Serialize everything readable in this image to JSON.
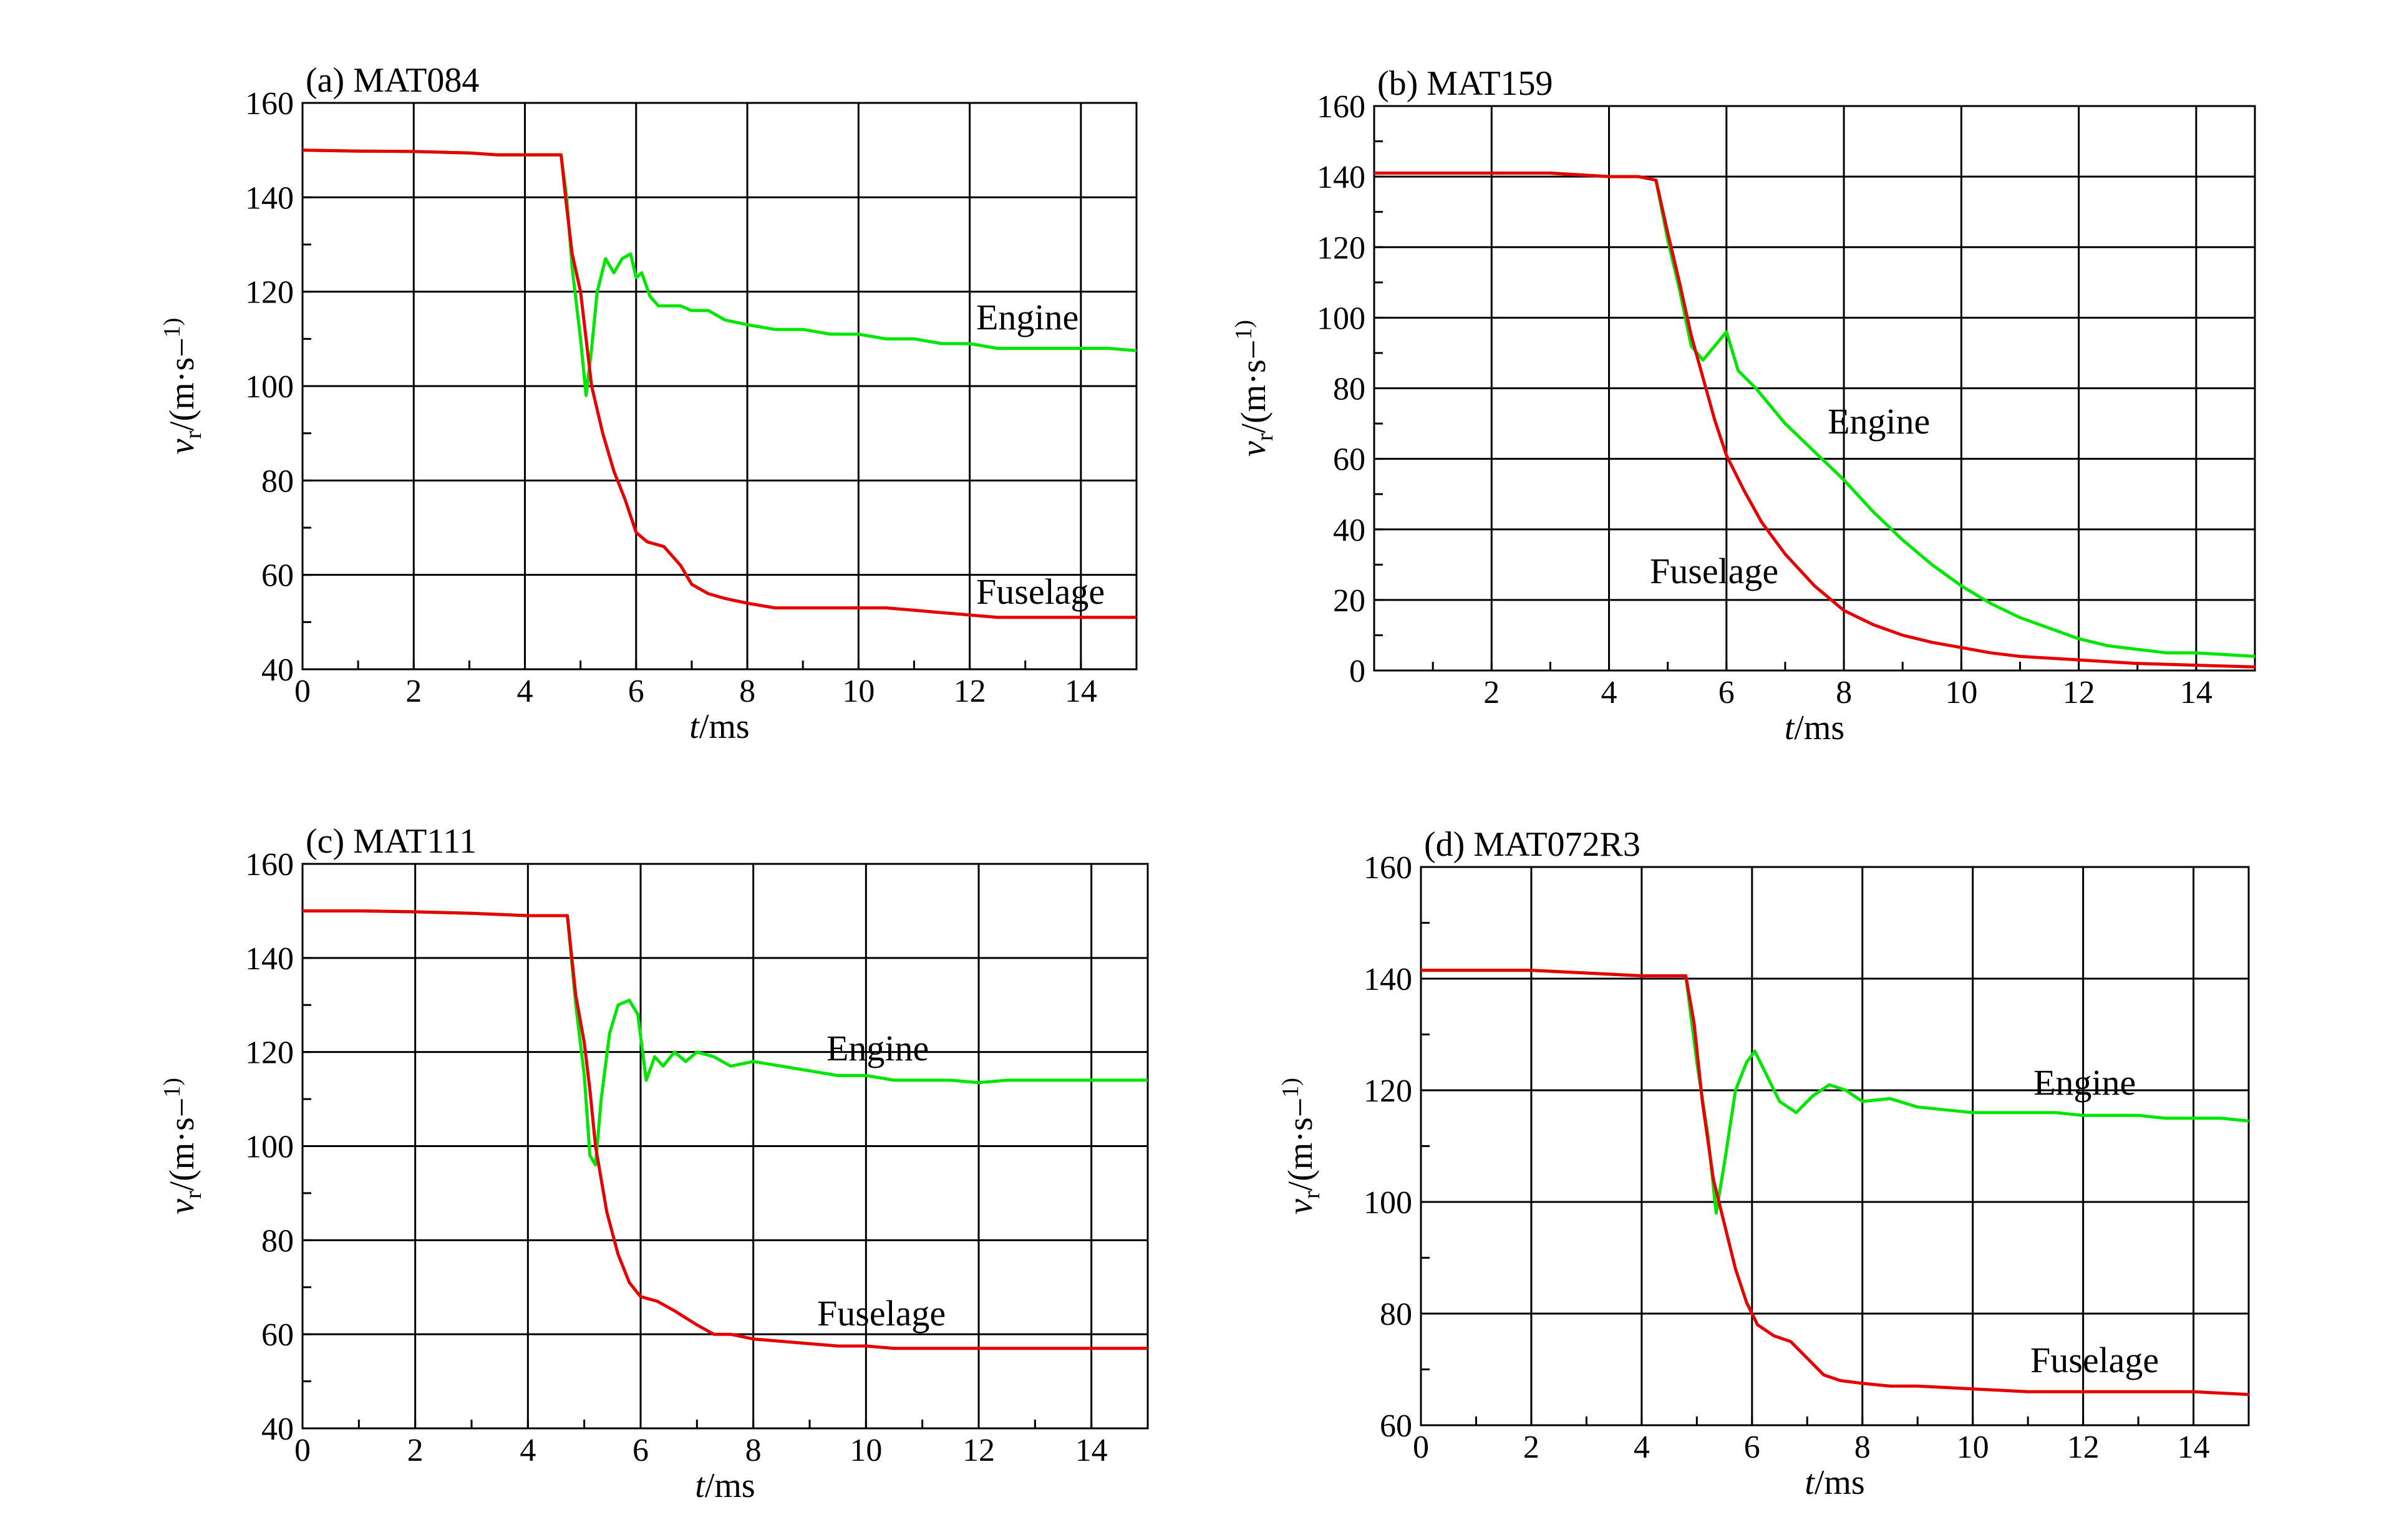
{
  "chart_data": [
    {
      "type": "line",
      "title": "(a) MAT084",
      "xlabel_italic": "t",
      "xlabel_unit": "/ms",
      "ylabel": "vr/(m·s−1)",
      "xlim": [
        0,
        15
      ],
      "ylim": [
        40,
        160
      ],
      "xticks": [
        0,
        2,
        4,
        6,
        8,
        10,
        12,
        14
      ],
      "yticks": [
        40,
        60,
        80,
        100,
        120,
        140,
        160
      ],
      "grid": true,
      "series": [
        {
          "name": "Engine",
          "color": "#00e600",
          "x": [
            0,
            1,
            2,
            3,
            3.5,
            4.0,
            4.5,
            4.65,
            4.75,
            4.85,
            5.0,
            5.1,
            5.2,
            5.3,
            5.45,
            5.6,
            5.75,
            5.9,
            6.0,
            6.1,
            6.25,
            6.4,
            6.6,
            6.8,
            7.0,
            7.3,
            7.6,
            8.0,
            8.5,
            9.0,
            9.5,
            10.0,
            10.5,
            11.0,
            11.5,
            12.0,
            12.5,
            13.0,
            13.5,
            14.0,
            14.5,
            15.0
          ],
          "values": [
            150,
            149.8,
            149.7,
            149.4,
            149,
            149,
            149,
            149,
            140,
            125,
            110,
            98,
            108,
            120,
            127,
            124,
            127,
            128,
            123,
            124,
            119,
            117,
            117,
            117,
            116,
            116,
            114,
            113,
            112,
            112,
            111,
            111,
            110,
            110,
            109,
            109,
            108,
            108,
            108,
            108,
            108,
            107.5
          ]
        },
        {
          "name": "Fuselage",
          "color": "#e60000",
          "x": [
            0,
            1,
            2,
            3,
            3.5,
            4.0,
            4.5,
            4.65,
            4.75,
            4.85,
            5.0,
            5.1,
            5.2,
            5.4,
            5.6,
            5.8,
            6.0,
            6.2,
            6.5,
            6.8,
            7.0,
            7.3,
            7.6,
            8.0,
            8.5,
            9.0,
            9.5,
            10.0,
            10.5,
            11.0,
            11.5,
            12.0,
            12.5,
            13.0,
            14.0,
            15.0
          ],
          "values": [
            150,
            149.8,
            149.7,
            149.4,
            149,
            149,
            149,
            149,
            138,
            128,
            120,
            110,
            100,
            90,
            82,
            76,
            69,
            67,
            66,
            62,
            58,
            56,
            55,
            54,
            53,
            53,
            53,
            53,
            53,
            52.5,
            52,
            51.5,
            51,
            51,
            51,
            51
          ]
        }
      ],
      "annotations": [
        "Engine",
        "Fuselage"
      ]
    },
    {
      "type": "line",
      "title": "(b) MAT159",
      "xlabel_italic": "t",
      "xlabel_unit": "/ms",
      "ylabel": "vr/(m·s−1)",
      "xlim": [
        0,
        15
      ],
      "ylim": [
        0,
        160
      ],
      "xticks": [
        2,
        4,
        6,
        8,
        10,
        12,
        14
      ],
      "yticks": [
        0,
        20,
        40,
        60,
        80,
        100,
        120,
        140,
        160
      ],
      "grid": true,
      "series": [
        {
          "name": "Engine",
          "color": "#00e600",
          "x": [
            0,
            1,
            2,
            3,
            4,
            4.5,
            4.8,
            5.0,
            5.2,
            5.4,
            5.6,
            5.8,
            6.0,
            6.2,
            6.5,
            7.0,
            7.5,
            8.0,
            8.5,
            9.0,
            9.5,
            10.0,
            10.5,
            11.0,
            11.5,
            12.0,
            12.5,
            13.0,
            13.5,
            14.0,
            14.5,
            15.0
          ],
          "values": [
            141,
            141,
            141,
            141,
            140,
            140,
            139,
            122,
            108,
            92,
            88,
            92,
            96,
            85,
            80,
            70,
            62,
            54,
            45,
            37,
            30,
            24,
            19,
            15,
            12,
            9,
            7,
            6,
            5,
            5,
            4.5,
            4
          ]
        },
        {
          "name": "Fuselage",
          "color": "#e60000",
          "x": [
            0,
            1,
            2,
            3,
            4,
            4.5,
            4.8,
            5.0,
            5.2,
            5.4,
            5.6,
            5.8,
            6.0,
            6.3,
            6.6,
            7.0,
            7.5,
            8.0,
            8.5,
            9.0,
            9.5,
            10.0,
            10.5,
            11.0,
            12.0,
            13.0,
            14.0,
            15.0
          ],
          "values": [
            141,
            141,
            141,
            141,
            140,
            140,
            139,
            124,
            110,
            95,
            83,
            71,
            61,
            51,
            42,
            33,
            24,
            17,
            13,
            10,
            8,
            6.5,
            5,
            4,
            3,
            2,
            1.5,
            1
          ]
        }
      ],
      "annotations": [
        "Engine",
        "Fuselage"
      ]
    },
    {
      "type": "line",
      "title": "(c) MAT111",
      "xlabel_italic": "t",
      "xlabel_unit": "/ms",
      "ylabel": "vr/(m·s−1)",
      "xlim": [
        0,
        15
      ],
      "ylim": [
        40,
        160
      ],
      "xticks": [
        0,
        2,
        4,
        6,
        8,
        10,
        12,
        14
      ],
      "yticks": [
        40,
        60,
        80,
        100,
        120,
        140,
        160
      ],
      "grid": true,
      "series": [
        {
          "name": "Engine",
          "color": "#00e600",
          "x": [
            0,
            1,
            2,
            3,
            4,
            4.5,
            4.7,
            4.85,
            5.0,
            5.1,
            5.2,
            5.3,
            5.45,
            5.6,
            5.8,
            5.95,
            6.1,
            6.25,
            6.4,
            6.6,
            6.8,
            7.0,
            7.3,
            7.6,
            8.0,
            8.5,
            9.0,
            9.5,
            10.0,
            10.5,
            11.0,
            11.5,
            12.0,
            12.5,
            13.0,
            13.5,
            14.0,
            14.5,
            15.0
          ],
          "values": [
            150,
            150,
            149.8,
            149.5,
            149,
            149,
            149,
            130,
            115,
            98,
            96,
            110,
            124,
            130,
            131,
            128,
            114,
            119,
            117,
            120,
            118,
            120,
            119,
            117,
            118,
            117,
            116,
            115,
            115,
            114,
            114,
            114,
            113.5,
            114,
            114,
            114,
            114,
            114,
            114
          ]
        },
        {
          "name": "Fuselage",
          "color": "#e60000",
          "x": [
            0,
            1,
            2,
            3,
            4,
            4.5,
            4.7,
            4.85,
            5.0,
            5.1,
            5.2,
            5.4,
            5.6,
            5.8,
            6.0,
            6.3,
            6.6,
            7.0,
            7.3,
            7.6,
            8.0,
            8.5,
            9.0,
            9.5,
            10.0,
            10.5,
            11.0,
            12.0,
            13.0,
            14.0,
            15.0
          ],
          "values": [
            150,
            150,
            149.8,
            149.5,
            149,
            149,
            149,
            132,
            122,
            112,
            100,
            86,
            77,
            71,
            68,
            67,
            65,
            62,
            60,
            60,
            59,
            58.5,
            58,
            57.5,
            57.5,
            57,
            57,
            57,
            57,
            57,
            57
          ]
        }
      ],
      "annotations": [
        "Engine",
        "Fuselage"
      ]
    },
    {
      "type": "line",
      "title": "(d) MAT072R3",
      "xlabel_italic": "t",
      "xlabel_unit": "/ms",
      "ylabel": "vr/(m·s−1)",
      "xlim": [
        0,
        15
      ],
      "ylim": [
        60,
        160
      ],
      "xticks": [
        0,
        2,
        4,
        6,
        8,
        10,
        12,
        14
      ],
      "yticks": [
        60,
        80,
        100,
        120,
        140,
        160
      ],
      "grid": true,
      "series": [
        {
          "name": "Engine",
          "color": "#00e600",
          "x": [
            0,
            1,
            2,
            3,
            4,
            4.5,
            4.8,
            5.0,
            5.2,
            5.35,
            5.5,
            5.7,
            5.9,
            6.05,
            6.2,
            6.5,
            6.8,
            7.1,
            7.4,
            7.7,
            8.0,
            8.5,
            9.0,
            9.5,
            10.0,
            10.5,
            11.0,
            11.5,
            12.0,
            12.5,
            13.0,
            13.5,
            14.0,
            14.5,
            15.0
          ],
          "values": [
            141.5,
            141.5,
            141.5,
            141,
            140.5,
            140.5,
            140.5,
            125,
            112,
            98,
            107,
            120,
            125,
            127,
            124,
            118,
            116,
            119,
            121,
            120,
            118,
            118.5,
            117,
            116.5,
            116,
            116,
            116,
            116,
            115.5,
            115.5,
            115.5,
            115,
            115,
            115,
            114.5
          ]
        },
        {
          "name": "Fuselage",
          "color": "#e60000",
          "x": [
            0,
            1,
            2,
            3,
            4,
            4.5,
            4.8,
            4.95,
            5.1,
            5.3,
            5.5,
            5.7,
            5.9,
            6.1,
            6.4,
            6.7,
            7.0,
            7.3,
            7.6,
            8.0,
            8.5,
            9.0,
            10.0,
            11.0,
            12.0,
            13.0,
            14.0,
            15.0
          ],
          "values": [
            141.5,
            141.5,
            141.5,
            141,
            140.5,
            140.5,
            140.5,
            132,
            118,
            104,
            96,
            88,
            82,
            78,
            76,
            75,
            72,
            69,
            68,
            67.5,
            67,
            67,
            66.5,
            66,
            66,
            66,
            66,
            65.5
          ]
        }
      ],
      "annotations": [
        "Engine",
        "Fuselage"
      ]
    }
  ]
}
